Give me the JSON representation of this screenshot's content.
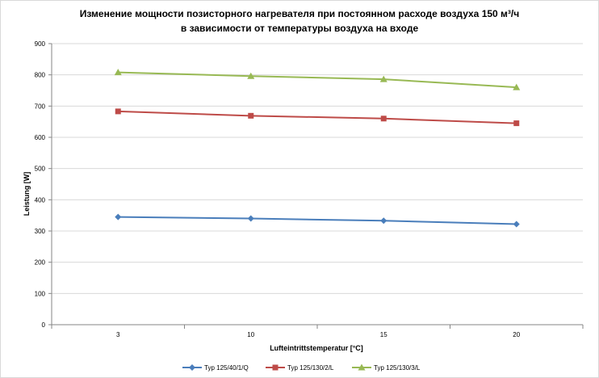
{
  "chart_data": {
    "type": "line",
    "title": {
      "line1": "Изменение мощности позисторного нагревателя при постоянном расходе воздуха 150 м³/ч",
      "line2": "в зависимости от температуры воздуха на входе"
    },
    "xlabel": "Lufteintrittstemperatur [°C]",
    "ylabel": "Leistung [W]",
    "categories": [
      "3",
      "10",
      "15",
      "20"
    ],
    "ylim": [
      0,
      900
    ],
    "yticks": [
      0,
      100,
      200,
      300,
      400,
      500,
      600,
      700,
      800,
      900
    ],
    "grid": "horizontal",
    "legend_position": "bottom",
    "series": [
      {
        "name": "Typ 125/40/1/Q",
        "color": "#4a7ebb",
        "marker": "diamond",
        "values": [
          345,
          340,
          333,
          322
        ]
      },
      {
        "name": "Typ 125/130/2/L",
        "color": "#be4b48",
        "marker": "square",
        "values": [
          683,
          669,
          660,
          645
        ]
      },
      {
        "name": "Typ 125/130/3/L",
        "color": "#98b954",
        "marker": "triangle",
        "values": [
          808,
          796,
          786,
          760
        ]
      }
    ]
  }
}
